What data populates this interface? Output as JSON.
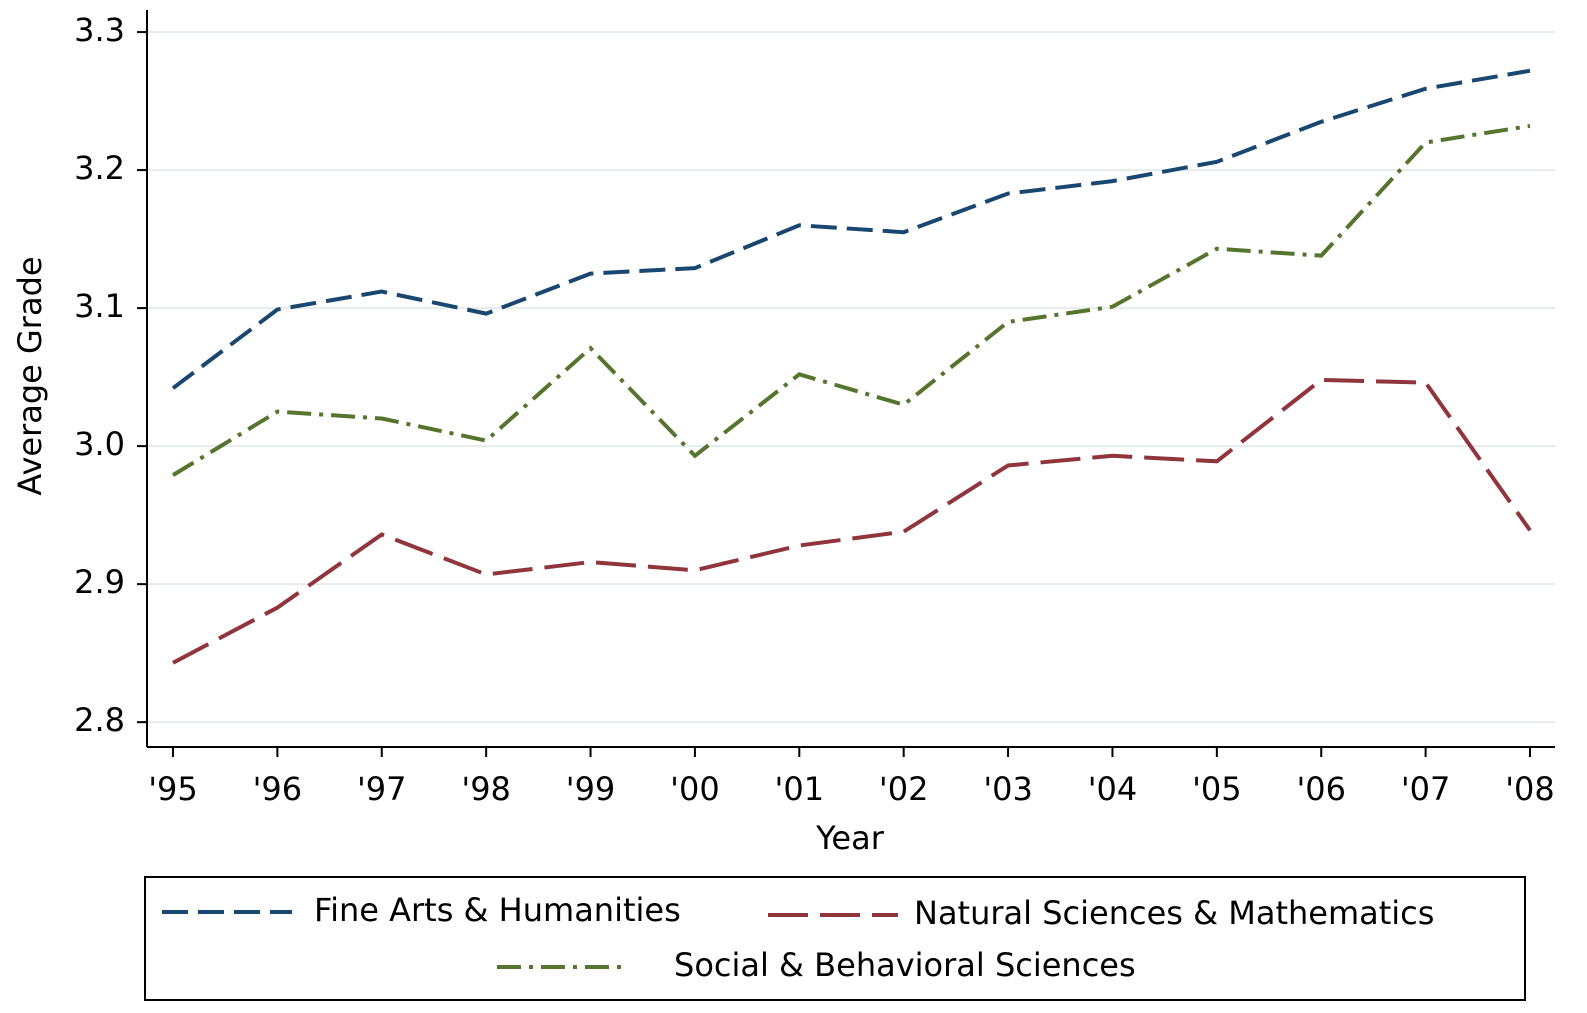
{
  "chart_data": {
    "type": "line",
    "xlabel": "Year",
    "ylabel": "Average Grade",
    "categories": [
      "'95",
      "'96",
      "'97",
      "'98",
      "'99",
      "'00",
      "'01",
      "'02",
      "'03",
      "'04",
      "'05",
      "'06",
      "'07",
      "'08"
    ],
    "series": [
      {
        "name": "Fine Arts & Humanities",
        "color": "#1a476f",
        "dash": "dashed",
        "values": [
          3.042,
          3.099,
          3.112,
          3.096,
          3.125,
          3.129,
          3.16,
          3.155,
          3.183,
          3.192,
          3.206,
          3.235,
          3.259,
          3.272
        ]
      },
      {
        "name": "Natural Sciences & Mathematics",
        "color": "#90353b",
        "dash": "longdash",
        "values": [
          2.843,
          2.883,
          2.936,
          2.907,
          2.916,
          2.91,
          2.928,
          2.938,
          2.986,
          2.993,
          2.989,
          3.048,
          3.046,
          2.939
        ]
      },
      {
        "name": "Social & Behavioral Sciences",
        "color": "#55752f",
        "dash": "dashdot",
        "values": [
          2.979,
          3.025,
          3.02,
          3.004,
          3.071,
          2.993,
          3.052,
          3.03,
          3.09,
          3.101,
          3.143,
          3.138,
          3.22,
          3.232
        ]
      }
    ],
    "ylim": [
      2.782,
      3.316
    ],
    "yticks": [
      2.8,
      2.9,
      {
        "value": 3,
        "label": "3.0"
      },
      3.1,
      3.2,
      3.3
    ],
    "grid": true
  }
}
